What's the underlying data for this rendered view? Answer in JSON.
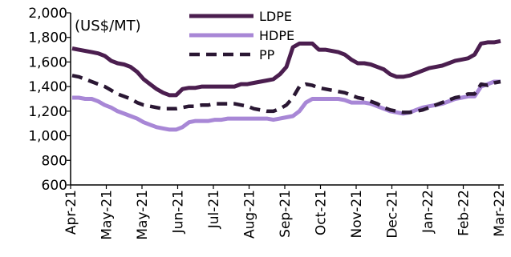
{
  "chart_data": {
    "type": "line",
    "title": "",
    "unit_label": "(US$/MT)",
    "xlabel": "",
    "ylabel": "",
    "ylim": [
      600,
      2000
    ],
    "yticks": [
      600,
      800,
      1000,
      1200,
      1400,
      1600,
      1800,
      2000
    ],
    "ytick_labels": [
      "600",
      "800",
      "1,000",
      "1,200",
      "1,400",
      "1,600",
      "1,800",
      "2,000"
    ],
    "xtick_labels": [
      "Apr-21",
      "May-21",
      "May-21",
      "Jun-21",
      "Jul-21",
      "Aug-21",
      "Sep-21",
      "Oct-21",
      "Nov-21",
      "Dec-21",
      "Jan-22",
      "Feb-22",
      "Mar-22"
    ],
    "grid": false,
    "legend_position": "top-right",
    "series": [
      {
        "name": "LDPE",
        "color": "#4B1E4F",
        "style": "solid",
        "values": [
          1710,
          1700,
          1690,
          1680,
          1670,
          1650,
          1610,
          1590,
          1580,
          1560,
          1520,
          1460,
          1420,
          1380,
          1350,
          1330,
          1330,
          1380,
          1390,
          1390,
          1400,
          1400,
          1400,
          1400,
          1400,
          1400,
          1420,
          1420,
          1430,
          1440,
          1450,
          1460,
          1500,
          1560,
          1720,
          1750,
          1750,
          1750,
          1700,
          1700,
          1690,
          1680,
          1660,
          1620,
          1590,
          1590,
          1580,
          1560,
          1540,
          1500,
          1480,
          1480,
          1490,
          1510,
          1530,
          1550,
          1560,
          1570,
          1590,
          1610,
          1620,
          1630,
          1660,
          1750,
          1760,
          1760,
          1770
        ]
      },
      {
        "name": "HDPE",
        "color": "#A887D6",
        "style": "solid",
        "values": [
          1310,
          1310,
          1300,
          1300,
          1280,
          1250,
          1230,
          1200,
          1180,
          1160,
          1140,
          1110,
          1090,
          1070,
          1060,
          1050,
          1050,
          1070,
          1110,
          1120,
          1120,
          1120,
          1130,
          1130,
          1140,
          1140,
          1140,
          1140,
          1140,
          1140,
          1140,
          1130,
          1140,
          1150,
          1160,
          1200,
          1270,
          1300,
          1300,
          1300,
          1300,
          1300,
          1290,
          1270,
          1270,
          1270,
          1260,
          1240,
          1220,
          1200,
          1190,
          1180,
          1190,
          1210,
          1230,
          1240,
          1250,
          1260,
          1280,
          1300,
          1310,
          1320,
          1320,
          1400,
          1420,
          1440,
          1440
        ]
      },
      {
        "name": "PP",
        "color": "#2A1733",
        "style": "dashed",
        "values": [
          1490,
          1480,
          1460,
          1440,
          1420,
          1400,
          1370,
          1340,
          1320,
          1300,
          1270,
          1250,
          1240,
          1230,
          1220,
          1220,
          1220,
          1230,
          1240,
          1240,
          1250,
          1250,
          1260,
          1260,
          1260,
          1260,
          1250,
          1240,
          1220,
          1210,
          1200,
          1200,
          1220,
          1250,
          1310,
          1400,
          1420,
          1410,
          1390,
          1380,
          1370,
          1360,
          1350,
          1330,
          1310,
          1300,
          1280,
          1260,
          1230,
          1210,
          1200,
          1190,
          1190,
          1200,
          1210,
          1230,
          1250,
          1270,
          1290,
          1310,
          1320,
          1340,
          1340,
          1420,
          1410,
          1430,
          1440
        ]
      }
    ]
  }
}
